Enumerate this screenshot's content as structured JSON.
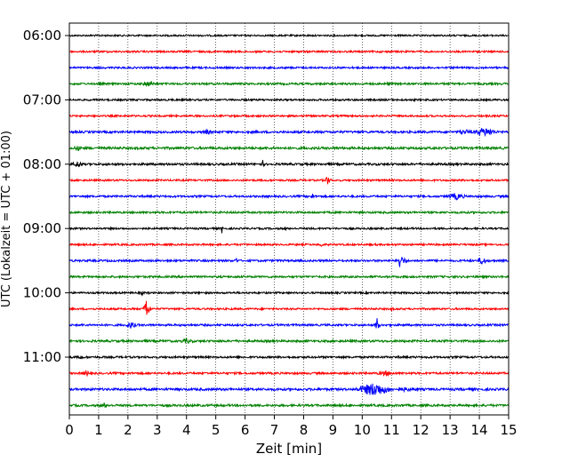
{
  "chart_data": {
    "type": "line",
    "title": "",
    "xlabel": "Zeit  [min]",
    "ylabel": "UTC (Lokalzeit = UTC + 01:00)",
    "xlim": [
      0,
      15
    ],
    "x_ticks": [
      0,
      1,
      2,
      3,
      4,
      5,
      6,
      7,
      8,
      9,
      10,
      11,
      12,
      13,
      14,
      15
    ],
    "x_tick_labels": [
      "0",
      "1",
      "2",
      "3",
      "4",
      "5",
      "6",
      "7",
      "8",
      "9",
      "10",
      "11",
      "12",
      "13",
      "14",
      "15"
    ],
    "grid": "vertical dotted",
    "y_tick_labels": [
      "06:00",
      "07:00",
      "08:00",
      "09:00",
      "10:00",
      "11:00"
    ],
    "colors": [
      "#000000",
      "#ff0000",
      "#0000ff",
      "#008000"
    ],
    "traces": [
      {
        "start": "06:00",
        "color": "#000000",
        "noise": 0.9,
        "events": []
      },
      {
        "start": "06:15",
        "color": "#ff0000",
        "noise": 1.0,
        "events": []
      },
      {
        "start": "06:30",
        "color": "#0000ff",
        "noise": 1.0,
        "events": []
      },
      {
        "start": "06:45",
        "color": "#008000",
        "noise": 1.1,
        "events": [
          {
            "t": 2.7,
            "amp": 3,
            "dur": 0.4
          },
          {
            "t": 10.9,
            "amp": 3,
            "dur": 0.1
          }
        ]
      },
      {
        "start": "07:00",
        "color": "#000000",
        "noise": 1.0,
        "events": []
      },
      {
        "start": "07:15",
        "color": "#ff0000",
        "noise": 1.0,
        "events": []
      },
      {
        "start": "07:30",
        "color": "#0000ff",
        "noise": 1.2,
        "events": [
          {
            "t": 4.7,
            "amp": 3,
            "dur": 0.3
          },
          {
            "t": 13.5,
            "amp": 3,
            "dur": 0.6
          },
          {
            "t": 14.2,
            "amp": 5,
            "dur": 0.6
          }
        ]
      },
      {
        "start": "07:45",
        "color": "#008000",
        "noise": 1.3,
        "events": [
          {
            "t": 0.3,
            "amp": 3,
            "dur": 0.3
          }
        ]
      },
      {
        "start": "08:00",
        "color": "#000000",
        "noise": 1.2,
        "events": [
          {
            "t": 0.3,
            "amp": 4,
            "dur": 0.3
          },
          {
            "t": 6.6,
            "amp": 5,
            "dur": 0.06
          }
        ]
      },
      {
        "start": "08:15",
        "color": "#ff0000",
        "noise": 1.0,
        "events": [
          {
            "t": 8.8,
            "amp": 8,
            "dur": 0.08
          }
        ]
      },
      {
        "start": "08:30",
        "color": "#0000ff",
        "noise": 1.1,
        "events": [
          {
            "t": 8.3,
            "amp": 4,
            "dur": 0.08
          },
          {
            "t": 13.2,
            "amp": 4,
            "dur": 0.5
          }
        ]
      },
      {
        "start": "08:45",
        "color": "#008000",
        "noise": 1.1,
        "events": []
      },
      {
        "start": "09:00",
        "color": "#000000",
        "noise": 1.0,
        "events": [
          {
            "t": 5.2,
            "amp": 6,
            "dur": 0.06
          },
          {
            "t": 7.4,
            "amp": 3,
            "dur": 0.06
          }
        ]
      },
      {
        "start": "09:15",
        "color": "#ff0000",
        "noise": 1.0,
        "events": [
          {
            "t": 8.6,
            "amp": 3,
            "dur": 0.1
          }
        ]
      },
      {
        "start": "09:30",
        "color": "#0000ff",
        "noise": 1.1,
        "events": [
          {
            "t": 5.7,
            "amp": 5,
            "dur": 0.06
          },
          {
            "t": 11.3,
            "amp": 13,
            "dur": 0.1
          },
          {
            "t": 14.1,
            "amp": 5,
            "dur": 0.2
          }
        ]
      },
      {
        "start": "09:45",
        "color": "#008000",
        "noise": 1.1,
        "events": []
      },
      {
        "start": "10:00",
        "color": "#000000",
        "noise": 1.0,
        "events": [
          {
            "t": 2.5,
            "amp": 3,
            "dur": 0.1
          }
        ]
      },
      {
        "start": "10:15",
        "color": "#ff0000",
        "noise": 1.0,
        "events": [
          {
            "t": 2.6,
            "amp": 20,
            "dur": 0.08
          },
          {
            "t": 11.0,
            "amp": 3,
            "dur": 0.1
          }
        ]
      },
      {
        "start": "10:30",
        "color": "#0000ff",
        "noise": 1.1,
        "events": [
          {
            "t": 2.1,
            "amp": 4,
            "dur": 0.3
          },
          {
            "t": 10.5,
            "amp": 10,
            "dur": 0.08
          }
        ]
      },
      {
        "start": "10:45",
        "color": "#008000",
        "noise": 1.2,
        "events": [
          {
            "t": 4.0,
            "amp": 3,
            "dur": 0.4
          }
        ]
      },
      {
        "start": "11:00",
        "color": "#000000",
        "noise": 1.1,
        "events": [
          {
            "t": 0.4,
            "amp": 4,
            "dur": 0.1
          }
        ]
      },
      {
        "start": "11:15",
        "color": "#ff0000",
        "noise": 1.1,
        "events": [
          {
            "t": 0.6,
            "amp": 3,
            "dur": 0.3
          },
          {
            "t": 10.8,
            "amp": 3,
            "dur": 0.5
          }
        ]
      },
      {
        "start": "11:30",
        "color": "#0000ff",
        "noise": 1.3,
        "events": [
          {
            "t": 10.4,
            "amp": 8,
            "dur": 0.8
          },
          {
            "t": 11.5,
            "amp": 3,
            "dur": 0.3
          }
        ]
      },
      {
        "start": "11:45",
        "color": "#008000",
        "noise": 1.2,
        "events": [
          {
            "t": 1.2,
            "amp": 3,
            "dur": 0.3
          }
        ]
      }
    ]
  }
}
